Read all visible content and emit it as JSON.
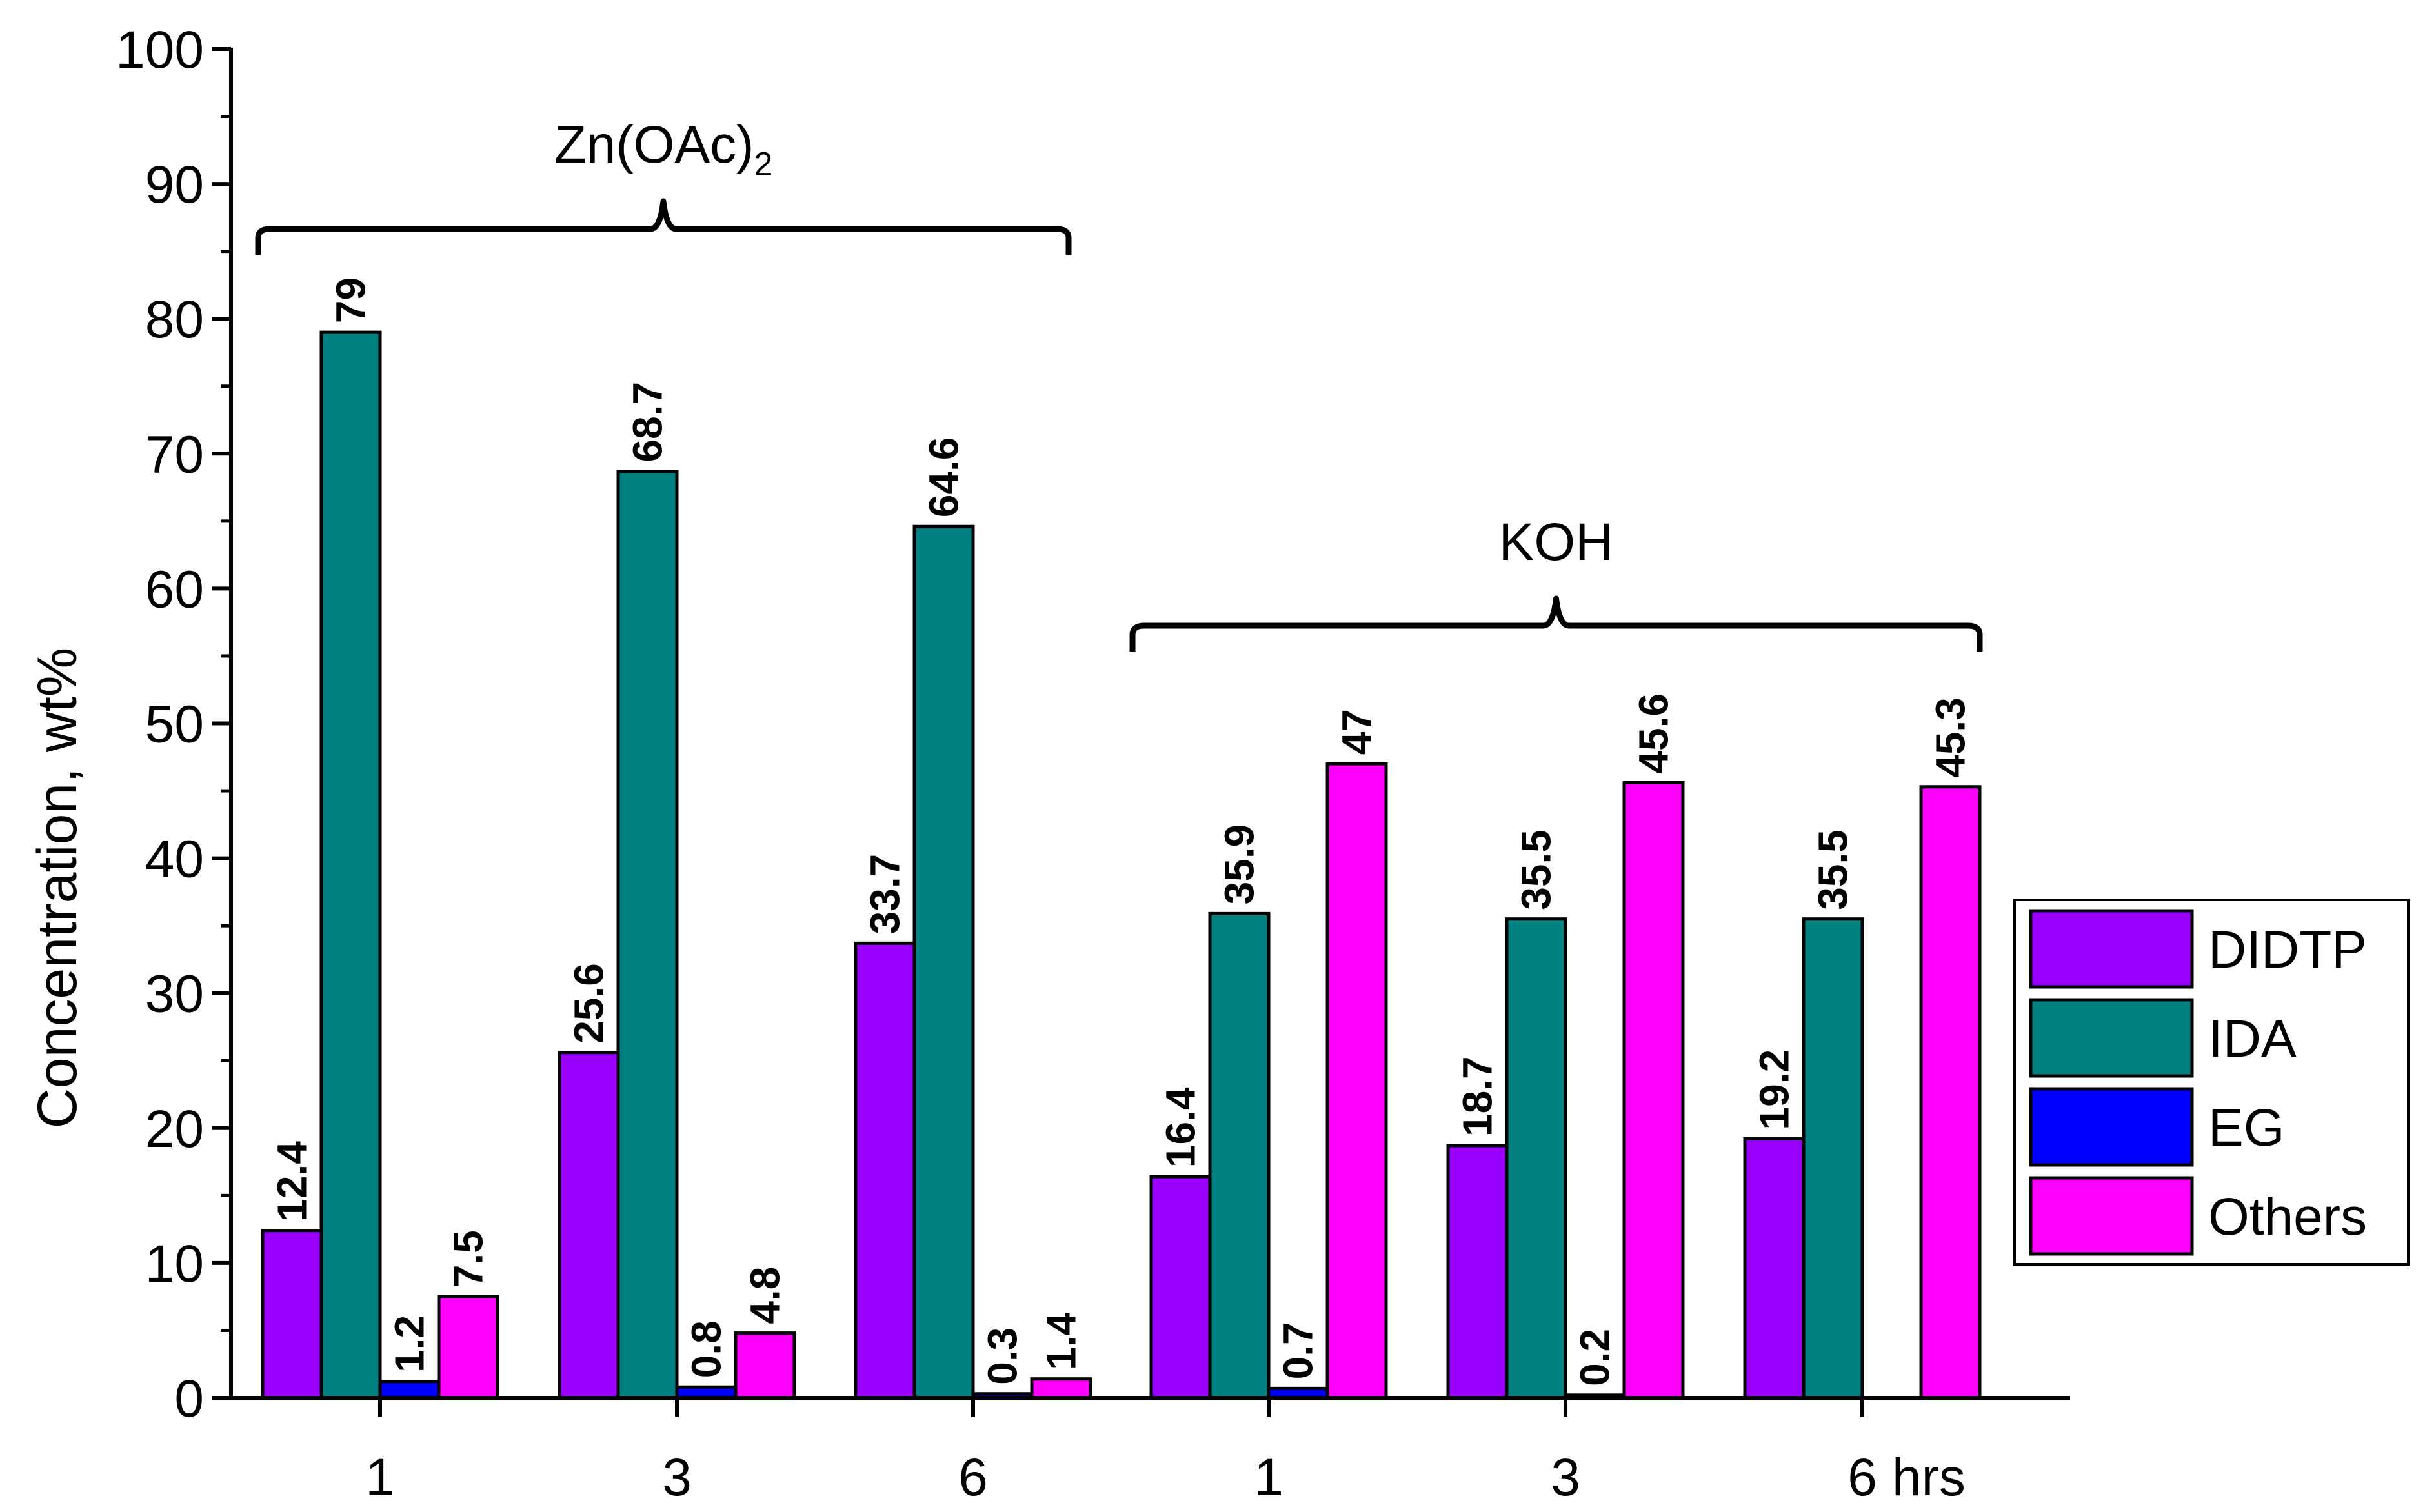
{
  "chart_data": {
    "type": "bar",
    "title": "",
    "xlabel": "",
    "x_unit_label": "hrs",
    "ylabel": "Concentration, wt%",
    "ylim": [
      0,
      100
    ],
    "yticks": [
      "0",
      "10",
      "20",
      "30",
      "40",
      "50",
      "60",
      "70",
      "80",
      "90",
      "100"
    ],
    "categories": [
      "1",
      "3",
      "6",
      "1",
      "3",
      "6"
    ],
    "groups": [
      {
        "name": "Zn(OAc)",
        "subscript": "2",
        "categories": [
          0,
          1,
          2
        ]
      },
      {
        "name": "KOH",
        "subscript": "",
        "categories": [
          3,
          4,
          5
        ]
      }
    ],
    "series": [
      {
        "name": "DIDTP",
        "color": "#9900FF",
        "values": [
          12.4,
          25.6,
          33.7,
          16.4,
          18.7,
          19.2
        ],
        "labels": [
          "12.4",
          "25.6",
          "33.7",
          "16.4",
          "18.7",
          "19.2"
        ]
      },
      {
        "name": "IDA",
        "color": "#008080",
        "values": [
          79,
          68.7,
          64.6,
          35.9,
          35.5,
          35.5
        ],
        "labels": [
          "79",
          "68.7",
          "64.6",
          "35.9",
          "35.5",
          "35.5"
        ]
      },
      {
        "name": "EG",
        "color": "#0000FF",
        "values": [
          1.2,
          0.8,
          0.3,
          0.7,
          0.2,
          null
        ],
        "labels": [
          "1.2",
          "0.8",
          "0.3",
          "0.7",
          "0.2",
          ""
        ]
      },
      {
        "name": "Others",
        "color": "#FF00FF",
        "values": [
          7.5,
          4.8,
          1.4,
          47,
          45.6,
          45.3
        ],
        "labels": [
          "7.5",
          "4.8",
          "1.4",
          "47",
          "45.6",
          "45.3"
        ]
      }
    ],
    "legend_position": "right"
  }
}
